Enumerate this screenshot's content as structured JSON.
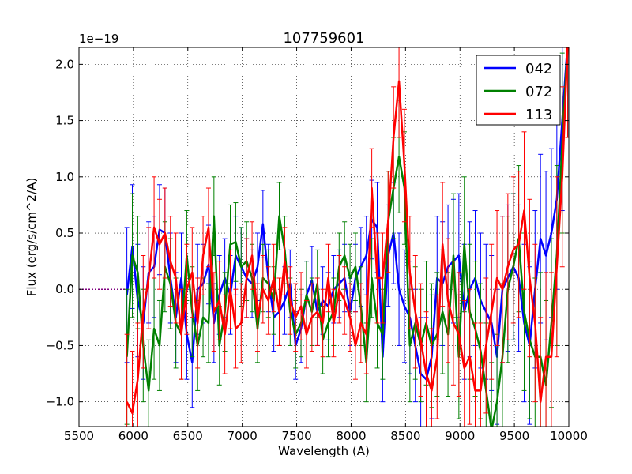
{
  "chart_data": {
    "type": "line",
    "title": "107759601",
    "xlabel": "Wavelength (A)",
    "ylabel": "Flux (erg/s/cm^2/A)",
    "offset_label": "1e−19",
    "scale_exponent": -19,
    "xlim": [
      5500,
      10000
    ],
    "ylim": [
      -1.22,
      2.15
    ],
    "xticks": [
      5500,
      6000,
      6500,
      7000,
      7500,
      8000,
      8500,
      9000,
      9500,
      10000
    ],
    "xtick_labels": [
      "5500",
      "6000",
      "6500",
      "7000",
      "7500",
      "8000",
      "8500",
      "9000",
      "9500",
      "10000"
    ],
    "yticks": [
      -1.0,
      -0.5,
      0.0,
      0.5,
      1.0,
      1.5,
      2.0
    ],
    "ytick_labels": [
      "−1.0",
      "−0.5",
      "0.0",
      "0.5",
      "1.0",
      "1.5",
      "2.0"
    ],
    "grid": true,
    "legend_position": "top-right",
    "zero_line_color": "#800080",
    "x": [
      5940,
      5990,
      6040,
      6090,
      6140,
      6190,
      6240,
      6290,
      6340,
      6390,
      6440,
      6490,
      6540,
      6590,
      6640,
      6690,
      6740,
      6790,
      6840,
      6890,
      6940,
      6990,
      7040,
      7090,
      7140,
      7190,
      7240,
      7290,
      7340,
      7390,
      7440,
      7490,
      7540,
      7590,
      7640,
      7690,
      7740,
      7790,
      7840,
      7890,
      7940,
      7990,
      8040,
      8090,
      8140,
      8190,
      8240,
      8290,
      8340,
      8390,
      8440,
      8490,
      8540,
      8590,
      8640,
      8690,
      8740,
      8790,
      8840,
      8890,
      8940,
      8990,
      9040,
      9090,
      9140,
      9190,
      9240,
      9290,
      9340,
      9390,
      9440,
      9490,
      9540,
      9590,
      9640,
      9690,
      9740,
      9790,
      9840,
      9890,
      9940,
      9990
    ],
    "series": [
      {
        "name": "042",
        "color": "#0000ff",
        "values": [
          -0.05,
          0.38,
          -0.1,
          -0.3,
          0.15,
          0.2,
          0.53,
          0.5,
          0.1,
          -0.25,
          0.1,
          -0.4,
          -0.65,
          0.0,
          0.05,
          0.22,
          -0.3,
          -0.05,
          0.1,
          -0.05,
          0.3,
          0.2,
          0.1,
          0.05,
          0.2,
          0.58,
          0.1,
          -0.25,
          -0.2,
          -0.1,
          0.05,
          -0.5,
          -0.35,
          -0.05,
          0.08,
          -0.2,
          -0.1,
          -0.15,
          0.0,
          0.05,
          0.1,
          -0.2,
          0.1,
          0.2,
          0.3,
          0.62,
          0.55,
          -0.6,
          0.3,
          0.5,
          0.0,
          -0.15,
          -0.25,
          -0.5,
          -0.75,
          -0.8,
          -0.6,
          0.1,
          0.05,
          0.2,
          0.25,
          0.3,
          -0.2,
          0.0,
          0.1,
          -0.1,
          -0.2,
          -0.3,
          -0.6,
          0.0,
          0.1,
          0.2,
          0.1,
          -0.3,
          -0.5,
          0.0,
          0.45,
          0.3,
          0.5,
          0.8,
          1.5,
          2.2
        ],
        "errors": [
          0.6,
          0.55,
          0.5,
          0.5,
          0.45,
          0.45,
          0.4,
          0.4,
          0.4,
          0.4,
          0.4,
          0.4,
          0.4,
          0.4,
          0.35,
          0.35,
          0.35,
          0.35,
          0.35,
          0.35,
          0.35,
          0.35,
          0.35,
          0.3,
          0.3,
          0.3,
          0.3,
          0.3,
          0.3,
          0.3,
          0.3,
          0.3,
          0.3,
          0.3,
          0.3,
          0.3,
          0.3,
          0.3,
          0.3,
          0.3,
          0.3,
          0.3,
          0.3,
          0.35,
          0.35,
          0.35,
          0.4,
          0.4,
          0.45,
          0.45,
          0.5,
          0.5,
          0.5,
          0.5,
          0.5,
          0.55,
          0.55,
          0.55,
          0.55,
          0.55,
          0.55,
          0.55,
          0.6,
          0.6,
          0.6,
          0.6,
          0.6,
          0.6,
          0.6,
          0.65,
          0.65,
          0.65,
          0.65,
          0.7,
          0.7,
          0.7,
          0.75,
          0.75,
          0.75,
          0.8,
          0.8,
          0.85
        ]
      },
      {
        "name": "072",
        "color": "#008000",
        "values": [
          -0.6,
          0.3,
          0.15,
          -0.5,
          -0.9,
          -0.35,
          -0.5,
          0.2,
          0.05,
          -0.3,
          -0.4,
          0.3,
          -0.2,
          -0.5,
          -0.25,
          -0.3,
          0.65,
          -0.5,
          -0.2,
          0.4,
          0.42,
          0.2,
          0.25,
          0.1,
          -0.35,
          0.1,
          0.05,
          -0.1,
          0.65,
          0.35,
          -0.2,
          -0.4,
          -0.3,
          -0.05,
          -0.2,
          0.05,
          -0.45,
          -0.3,
          -0.2,
          0.2,
          0.3,
          0.1,
          0.2,
          -0.15,
          -0.65,
          0.1,
          -0.3,
          -0.4,
          0.6,
          0.9,
          1.18,
          0.9,
          -0.5,
          -0.3,
          -0.5,
          -0.3,
          -0.5,
          -0.4,
          -0.2,
          -0.4,
          0.3,
          -0.6,
          0.4,
          -0.2,
          -0.35,
          -0.55,
          -0.9,
          -1.25,
          -1.0,
          -0.6,
          0.0,
          0.2,
          0.45,
          -0.2,
          -0.45,
          -0.6,
          -0.6,
          -0.85,
          -0.3,
          0.3,
          1.3,
          2.2
        ],
        "errors": [
          0.6,
          0.55,
          0.5,
          0.5,
          0.45,
          0.45,
          0.4,
          0.4,
          0.4,
          0.4,
          0.4,
          0.4,
          0.4,
          0.4,
          0.35,
          0.35,
          0.35,
          0.35,
          0.35,
          0.35,
          0.35,
          0.35,
          0.35,
          0.3,
          0.3,
          0.3,
          0.3,
          0.3,
          0.3,
          0.3,
          0.3,
          0.3,
          0.3,
          0.3,
          0.3,
          0.3,
          0.3,
          0.3,
          0.3,
          0.3,
          0.3,
          0.3,
          0.3,
          0.35,
          0.35,
          0.35,
          0.4,
          0.4,
          0.45,
          0.45,
          0.5,
          0.5,
          0.5,
          0.5,
          0.5,
          0.55,
          0.55,
          0.55,
          0.55,
          0.55,
          0.55,
          0.55,
          0.6,
          0.6,
          0.6,
          0.6,
          0.6,
          0.6,
          0.6,
          0.65,
          0.65,
          0.65,
          0.65,
          0.7,
          0.7,
          0.7,
          0.75,
          0.75,
          0.75,
          0.8,
          0.8,
          0.85
        ]
      },
      {
        "name": "113",
        "color": "#ff0000",
        "values": [
          -1.0,
          -1.1,
          -0.8,
          -0.2,
          0.1,
          0.55,
          0.4,
          0.5,
          0.25,
          0.1,
          -0.4,
          0.0,
          0.15,
          -0.3,
          0.3,
          0.55,
          -0.2,
          -0.1,
          -0.4,
          0.0,
          -0.35,
          -0.3,
          0.1,
          0.3,
          -0.25,
          0.0,
          -0.1,
          0.1,
          -0.2,
          0.25,
          -0.1,
          -0.25,
          -0.15,
          -0.4,
          -0.25,
          -0.2,
          -0.3,
          0.1,
          -0.3,
          0.0,
          -0.1,
          -0.25,
          -0.5,
          -0.3,
          -0.4,
          0.9,
          0.1,
          0.1,
          0.6,
          1.35,
          1.85,
          1.1,
          0.15,
          -0.2,
          -0.45,
          -0.75,
          -0.9,
          -0.6,
          0.4,
          -0.1,
          -0.3,
          -0.4,
          -0.7,
          -0.6,
          -0.9,
          -0.9,
          -0.5,
          -0.2,
          0.1,
          0.0,
          0.2,
          0.35,
          0.4,
          0.7,
          0.1,
          -0.3,
          -1.0,
          -0.6,
          -0.6,
          0.2,
          1.0,
          2.2
        ],
        "errors": [
          0.6,
          0.55,
          0.5,
          0.5,
          0.45,
          0.45,
          0.4,
          0.4,
          0.4,
          0.4,
          0.4,
          0.4,
          0.4,
          0.4,
          0.35,
          0.35,
          0.35,
          0.35,
          0.35,
          0.35,
          0.35,
          0.35,
          0.35,
          0.3,
          0.3,
          0.3,
          0.3,
          0.3,
          0.3,
          0.3,
          0.3,
          0.3,
          0.3,
          0.3,
          0.3,
          0.3,
          0.3,
          0.3,
          0.3,
          0.3,
          0.3,
          0.3,
          0.3,
          0.35,
          0.35,
          0.35,
          0.4,
          0.4,
          0.45,
          0.45,
          0.5,
          0.5,
          0.5,
          0.5,
          0.5,
          0.55,
          0.55,
          0.55,
          0.55,
          0.55,
          0.55,
          0.55,
          0.6,
          0.6,
          0.6,
          0.6,
          0.6,
          0.6,
          0.6,
          0.65,
          0.65,
          0.65,
          0.65,
          0.7,
          0.7,
          0.7,
          0.75,
          0.75,
          0.75,
          0.8,
          0.8,
          0.85
        ]
      }
    ]
  }
}
